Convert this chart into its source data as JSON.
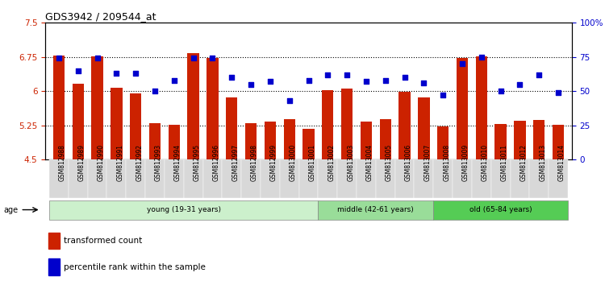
{
  "title": "GDS3942 / 209544_at",
  "categories": [
    "GSM812988",
    "GSM812989",
    "GSM812990",
    "GSM812991",
    "GSM812992",
    "GSM812993",
    "GSM812994",
    "GSM812995",
    "GSM812996",
    "GSM812997",
    "GSM812998",
    "GSM812999",
    "GSM813000",
    "GSM813001",
    "GSM813002",
    "GSM813003",
    "GSM813004",
    "GSM813005",
    "GSM813006",
    "GSM813007",
    "GSM813008",
    "GSM813009",
    "GSM813010",
    "GSM813011",
    "GSM813012",
    "GSM813013",
    "GSM813014"
  ],
  "bar_values": [
    6.79,
    6.16,
    6.76,
    6.07,
    5.96,
    5.3,
    5.27,
    6.83,
    6.73,
    5.86,
    5.29,
    5.34,
    5.39,
    5.18,
    6.02,
    6.06,
    5.34,
    5.38,
    5.98,
    5.87,
    5.22,
    6.73,
    6.76,
    5.28,
    5.35,
    5.37,
    5.27
  ],
  "percentile_values": [
    74,
    65,
    74,
    63,
    63,
    50,
    58,
    74,
    74,
    60,
    55,
    57,
    43,
    58,
    62,
    62,
    57,
    58,
    60,
    56,
    47,
    70,
    75,
    50,
    55,
    62,
    49
  ],
  "bar_color": "#CC2200",
  "dot_color": "#0000CC",
  "ylim_left": [
    4.5,
    7.5
  ],
  "ylim_right": [
    0,
    100
  ],
  "yticks_left": [
    4.5,
    5.25,
    6.0,
    6.75,
    7.5
  ],
  "yticks_right": [
    0,
    25,
    50,
    75,
    100
  ],
  "ytick_labels_left": [
    "4.5",
    "5.25",
    "6",
    "6.75",
    "7.5"
  ],
  "ytick_labels_right": [
    "0",
    "25",
    "50",
    "75",
    "100%"
  ],
  "hlines": [
    5.25,
    6.0,
    6.75
  ],
  "groups": [
    {
      "label": "young (19-31 years)",
      "start": 0,
      "end": 13,
      "color": "#ccf0cc"
    },
    {
      "label": "middle (42-61 years)",
      "start": 14,
      "end": 19,
      "color": "#99dd99"
    },
    {
      "label": "old (65-84 years)",
      "start": 20,
      "end": 26,
      "color": "#55cc55"
    }
  ],
  "age_label": "age",
  "legend_items": [
    {
      "label": "transformed count",
      "color": "#CC2200"
    },
    {
      "label": "percentile rank within the sample",
      "color": "#0000CC"
    }
  ],
  "axis_left_color": "#CC2200",
  "axis_right_color": "#0000CC"
}
